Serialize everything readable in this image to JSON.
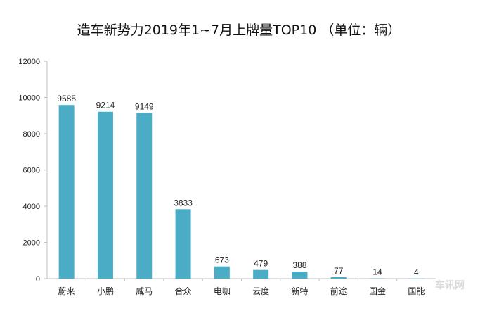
{
  "chart_data": {
    "type": "bar",
    "title": "造车新势力2019年1~7月上牌量TOP10 （单位：辆）",
    "categories": [
      "蔚来",
      "小鹏",
      "威马",
      "合众",
      "电咖",
      "云度",
      "新特",
      "前途",
      "国金",
      "国能"
    ],
    "values": [
      9585,
      9214,
      9149,
      3833,
      673,
      479,
      388,
      77,
      14,
      4
    ],
    "data_labels": [
      "9585",
      "9214",
      "9149",
      "3833",
      "673",
      "479",
      "388",
      "77",
      "14",
      "4"
    ],
    "ylim": [
      0,
      12000
    ],
    "yticks": [
      0,
      2000,
      4000,
      6000,
      8000,
      10000,
      12000
    ],
    "xlabel": "",
    "ylabel": "",
    "grid": false,
    "bar_color": "#4bacc6"
  },
  "watermark": "车讯网"
}
